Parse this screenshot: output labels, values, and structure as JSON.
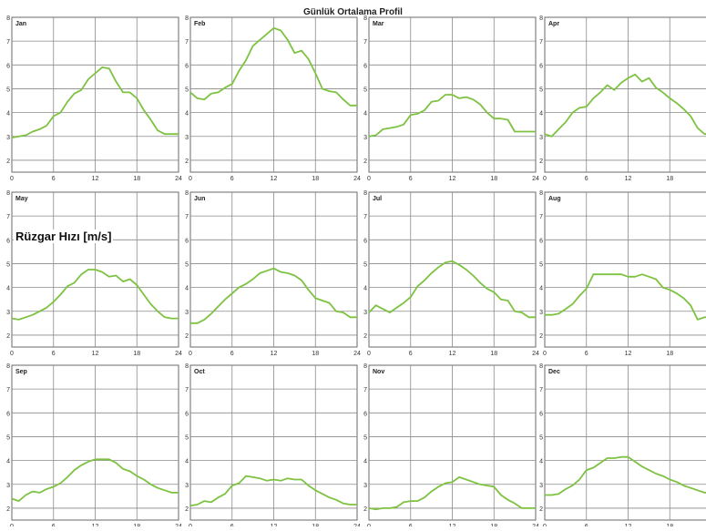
{
  "chart_data": {
    "type": "line",
    "title": "Günlük Ortalama Profil",
    "ylabel": "Rüzgar Hızı [m/s]",
    "xlabel": "",
    "xlim": [
      0,
      24
    ],
    "ylim": [
      1.5,
      8
    ],
    "x_ticks": [
      0,
      6,
      12,
      18,
      24
    ],
    "y_ticks": [
      2,
      3,
      4,
      5,
      6,
      7,
      8
    ],
    "grid": true,
    "line_color": "#7dc241",
    "grid_color": "#8a8a8a",
    "x": [
      0,
      1,
      2,
      3,
      4,
      5,
      6,
      7,
      8,
      9,
      10,
      11,
      12,
      13,
      14,
      15,
      16,
      17,
      18,
      19,
      20,
      21,
      22,
      23,
      24
    ],
    "panels": [
      {
        "name": "Jan",
        "values": [
          2.95,
          3.0,
          3.05,
          3.2,
          3.3,
          3.45,
          3.85,
          4.0,
          4.45,
          4.8,
          4.95,
          5.4,
          5.65,
          5.9,
          5.85,
          5.3,
          4.85,
          4.85,
          4.6,
          4.1,
          3.7,
          3.25,
          3.1,
          3.1,
          3.1
        ]
      },
      {
        "name": "Feb",
        "values": [
          4.85,
          4.6,
          4.55,
          4.8,
          4.85,
          5.05,
          5.2,
          5.75,
          6.2,
          6.8,
          7.05,
          7.3,
          7.55,
          7.45,
          7.05,
          6.5,
          6.6,
          6.25,
          5.65,
          5.0,
          4.9,
          4.85,
          4.55,
          4.3,
          4.3
        ]
      },
      {
        "name": "Mar",
        "values": [
          3.0,
          3.05,
          3.3,
          3.35,
          3.4,
          3.5,
          3.9,
          3.95,
          4.1,
          4.45,
          4.5,
          4.75,
          4.75,
          4.6,
          4.65,
          4.55,
          4.35,
          4.0,
          3.75,
          3.75,
          3.7,
          3.2,
          3.2,
          3.2,
          3.2
        ]
      },
      {
        "name": "Apr",
        "values": [
          3.1,
          3.0,
          3.3,
          3.6,
          4.0,
          4.2,
          4.25,
          4.6,
          4.85,
          5.15,
          4.95,
          5.25,
          5.45,
          5.6,
          5.3,
          5.45,
          5.05,
          4.85,
          4.6,
          4.4,
          4.15,
          3.85,
          3.35,
          3.1,
          3.1
        ]
      },
      {
        "name": "May",
        "values": [
          2.7,
          2.65,
          2.75,
          2.85,
          3.0,
          3.15,
          3.4,
          3.7,
          4.05,
          4.2,
          4.55,
          4.75,
          4.75,
          4.65,
          4.45,
          4.5,
          4.25,
          4.35,
          4.1,
          3.7,
          3.3,
          3.0,
          2.75,
          2.7,
          2.7
        ]
      },
      {
        "name": "Jun",
        "values": [
          2.5,
          2.5,
          2.65,
          2.9,
          3.2,
          3.5,
          3.75,
          4.0,
          4.15,
          4.35,
          4.6,
          4.7,
          4.8,
          4.65,
          4.6,
          4.5,
          4.3,
          3.9,
          3.55,
          3.45,
          3.35,
          3.0,
          2.95,
          2.75,
          2.75
        ]
      },
      {
        "name": "Jul",
        "values": [
          2.95,
          3.25,
          3.1,
          2.95,
          3.15,
          3.35,
          3.6,
          4.05,
          4.3,
          4.6,
          4.85,
          5.05,
          5.1,
          4.95,
          4.75,
          4.5,
          4.2,
          3.95,
          3.8,
          3.5,
          3.45,
          3.0,
          2.95,
          2.75,
          2.75
        ]
      },
      {
        "name": "Aug",
        "values": [
          2.85,
          2.85,
          2.9,
          3.1,
          3.3,
          3.65,
          3.95,
          4.55,
          4.55,
          4.55,
          4.55,
          4.55,
          4.45,
          4.45,
          4.55,
          4.45,
          4.35,
          4.0,
          3.9,
          3.75,
          3.55,
          3.25,
          2.65,
          2.75,
          2.75
        ]
      },
      {
        "name": "Sep",
        "values": [
          2.4,
          2.3,
          2.55,
          2.7,
          2.65,
          2.8,
          2.9,
          3.05,
          3.3,
          3.6,
          3.8,
          3.95,
          4.05,
          4.05,
          4.05,
          3.9,
          3.65,
          3.55,
          3.35,
          3.2,
          3.0,
          2.85,
          2.75,
          2.65,
          2.65
        ]
      },
      {
        "name": "Oct",
        "values": [
          2.1,
          2.15,
          2.3,
          2.25,
          2.45,
          2.6,
          2.95,
          3.05,
          3.35,
          3.3,
          3.25,
          3.15,
          3.2,
          3.15,
          3.25,
          3.2,
          3.2,
          2.95,
          2.75,
          2.6,
          2.45,
          2.35,
          2.2,
          2.15,
          2.15
        ]
      },
      {
        "name": "Nov",
        "values": [
          2.0,
          1.95,
          2.0,
          2.0,
          2.05,
          2.25,
          2.3,
          2.3,
          2.45,
          2.7,
          2.9,
          3.05,
          3.1,
          3.3,
          3.2,
          3.1,
          3.0,
          2.95,
          2.9,
          2.55,
          2.35,
          2.2,
          2.0,
          2.0,
          2.0
        ]
      },
      {
        "name": "Dec",
        "values": [
          2.55,
          2.55,
          2.6,
          2.8,
          2.95,
          3.2,
          3.6,
          3.7,
          3.9,
          4.1,
          4.1,
          4.15,
          4.15,
          3.95,
          3.75,
          3.6,
          3.45,
          3.35,
          3.2,
          3.1,
          2.95,
          2.85,
          2.75,
          2.65,
          2.65
        ]
      }
    ]
  }
}
